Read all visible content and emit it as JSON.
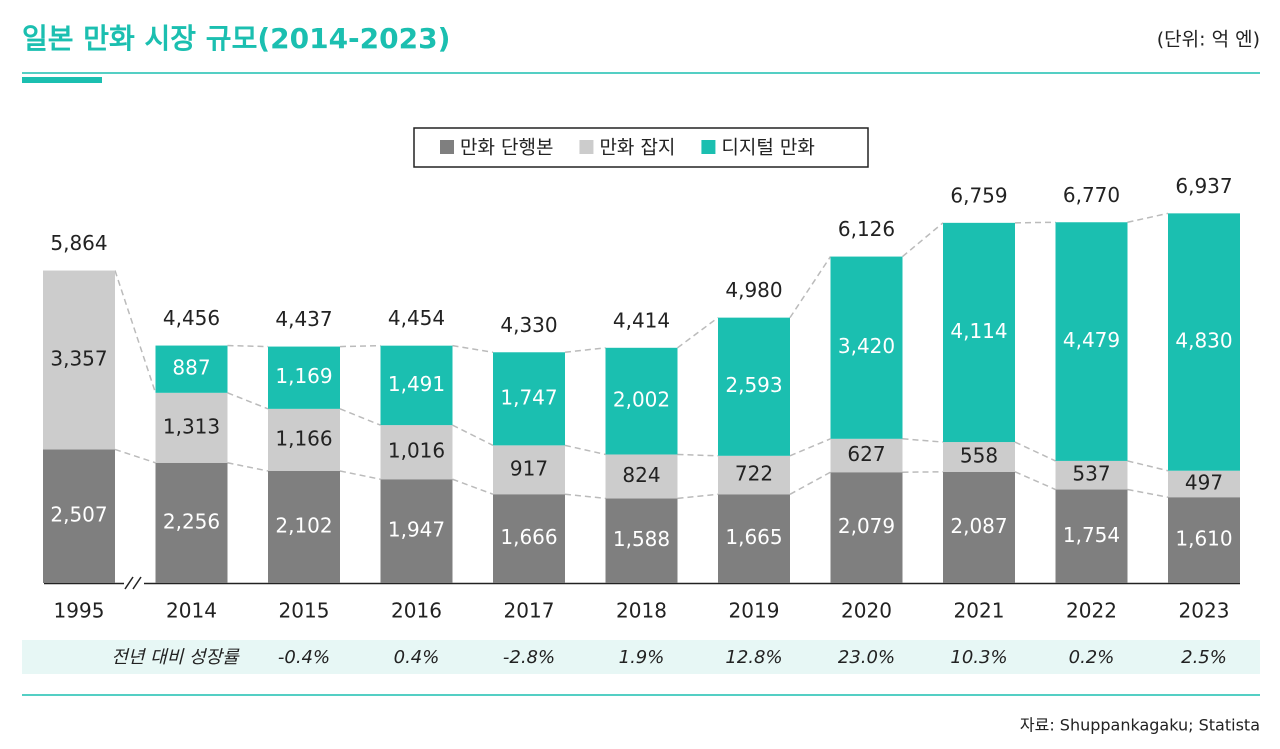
{
  "chart_data": {
    "type": "bar",
    "stacked": true,
    "title": "일본 만화 시장 규모(2014-2023)",
    "unit": "(단위: 억 엔)",
    "categories": [
      "1995",
      "2014",
      "2015",
      "2016",
      "2017",
      "2018",
      "2019",
      "2020",
      "2021",
      "2022",
      "2023"
    ],
    "series": [
      {
        "name": "만화 단행본",
        "color": "#7f7f7f",
        "label_color": "#ffffff",
        "values": [
          2507,
          2256,
          2102,
          1947,
          1666,
          1588,
          1665,
          2079,
          2087,
          1754,
          1610
        ],
        "value_labels": [
          "2,507",
          "2,256",
          "2,102",
          "1,947",
          "1,666",
          "1,588",
          "1,665",
          "2,079",
          "2,087",
          "1,754",
          "1,610"
        ]
      },
      {
        "name": "만화 잡지",
        "color": "#cccccc",
        "label_color": "#222222",
        "values": [
          3357,
          1313,
          1166,
          1016,
          917,
          824,
          722,
          627,
          558,
          537,
          497
        ],
        "value_labels": [
          "3,357",
          "1,313",
          "1,166",
          "1,016",
          "917",
          "824",
          "722",
          "627",
          "558",
          "537",
          "497"
        ]
      },
      {
        "name": "디지털 만화",
        "color": "#1bbfb0",
        "label_color": "#ffffff",
        "values": [
          null,
          887,
          1169,
          1491,
          1747,
          2002,
          2593,
          3420,
          4114,
          4479,
          4830
        ],
        "value_labels": [
          null,
          "887",
          "1,169",
          "1,491",
          "1,747",
          "2,002",
          "2,593",
          "3,420",
          "4,114",
          "4,479",
          "4,830"
        ]
      }
    ],
    "totals": [
      5864,
      4456,
      4437,
      4454,
      4330,
      4414,
      4980,
      6126,
      6759,
      6770,
      6937
    ],
    "total_labels": [
      "5,864",
      "4,456",
      "4,437",
      "4,454",
      "4,330",
      "4,414",
      "4,980",
      "6,126",
      "6,759",
      "6,770",
      "6,937"
    ],
    "growth_title": "전년 대비 성장률",
    "growth": [
      null,
      null,
      -0.4,
      0.4,
      -2.8,
      1.9,
      12.8,
      23.0,
      10.3,
      0.2,
      2.5
    ],
    "growth_labels": [
      null,
      null,
      "-0.4%",
      "0.4%",
      "-2.8%",
      "1.9%",
      "12.8%",
      "23.0%",
      "10.3%",
      "0.2%",
      "2.5%"
    ],
    "ylim": [
      0,
      7000
    ],
    "source": "자료: Shuppankagaku; Statista"
  }
}
